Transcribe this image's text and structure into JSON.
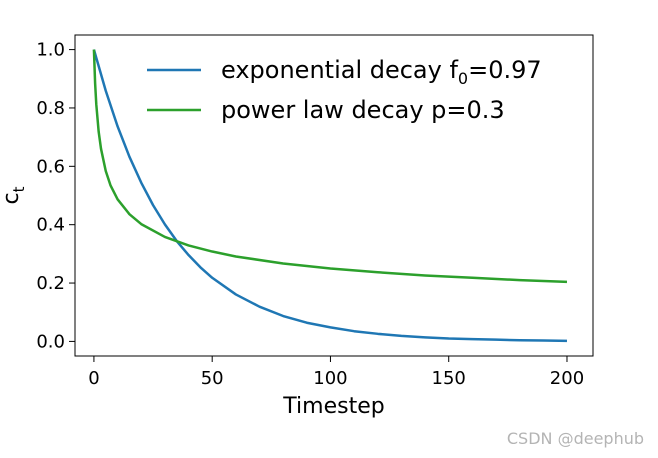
{
  "chart_data": {
    "type": "line",
    "xlabel": "Timestep",
    "ylabel": "c",
    "ylabel_subscript": "t",
    "xlim": [
      -8,
      211
    ],
    "ylim": [
      -0.05,
      1.05
    ],
    "xticks": [
      0,
      50,
      100,
      150,
      200
    ],
    "xtick_labels": [
      "0",
      "50",
      "100",
      "150",
      "200"
    ],
    "yticks": [
      0.0,
      0.2,
      0.4,
      0.6,
      0.8,
      1.0
    ],
    "ytick_labels": [
      "0.0",
      "0.2",
      "0.4",
      "0.6",
      "0.8",
      "1.0"
    ],
    "grid": false,
    "legend_position": "top-right",
    "series": [
      {
        "name": "exponential decay f0=0.97",
        "legend_text": "exponential decay f",
        "legend_subscript": "0",
        "legend_suffix": "=0.97",
        "color": "#1f77b4",
        "x": [
          0,
          5,
          10,
          15,
          20,
          25,
          30,
          35,
          40,
          45,
          50,
          60,
          70,
          80,
          90,
          100,
          110,
          120,
          130,
          140,
          150,
          160,
          170,
          180,
          190,
          200
        ],
        "y": [
          1.0,
          0.859,
          0.737,
          0.633,
          0.544,
          0.467,
          0.401,
          0.344,
          0.296,
          0.254,
          0.218,
          0.161,
          0.119,
          0.087,
          0.064,
          0.048,
          0.035,
          0.026,
          0.019,
          0.014,
          0.01,
          0.008,
          0.006,
          0.004,
          0.003,
          0.002
        ]
      },
      {
        "name": "power law decay p=0.3",
        "legend_text": "power law decay p=0.3",
        "color": "#2ca02c",
        "x": [
          0,
          0.5,
          1,
          2,
          3,
          5,
          7,
          10,
          15,
          20,
          30,
          40,
          50,
          60,
          80,
          100,
          120,
          140,
          160,
          180,
          200
        ],
        "y": [
          1.0,
          0.885,
          0.812,
          0.719,
          0.66,
          0.584,
          0.535,
          0.487,
          0.436,
          0.402,
          0.358,
          0.329,
          0.308,
          0.291,
          0.267,
          0.25,
          0.237,
          0.226,
          0.218,
          0.21,
          0.204
        ]
      }
    ]
  },
  "watermark": "CSDN @deephub"
}
